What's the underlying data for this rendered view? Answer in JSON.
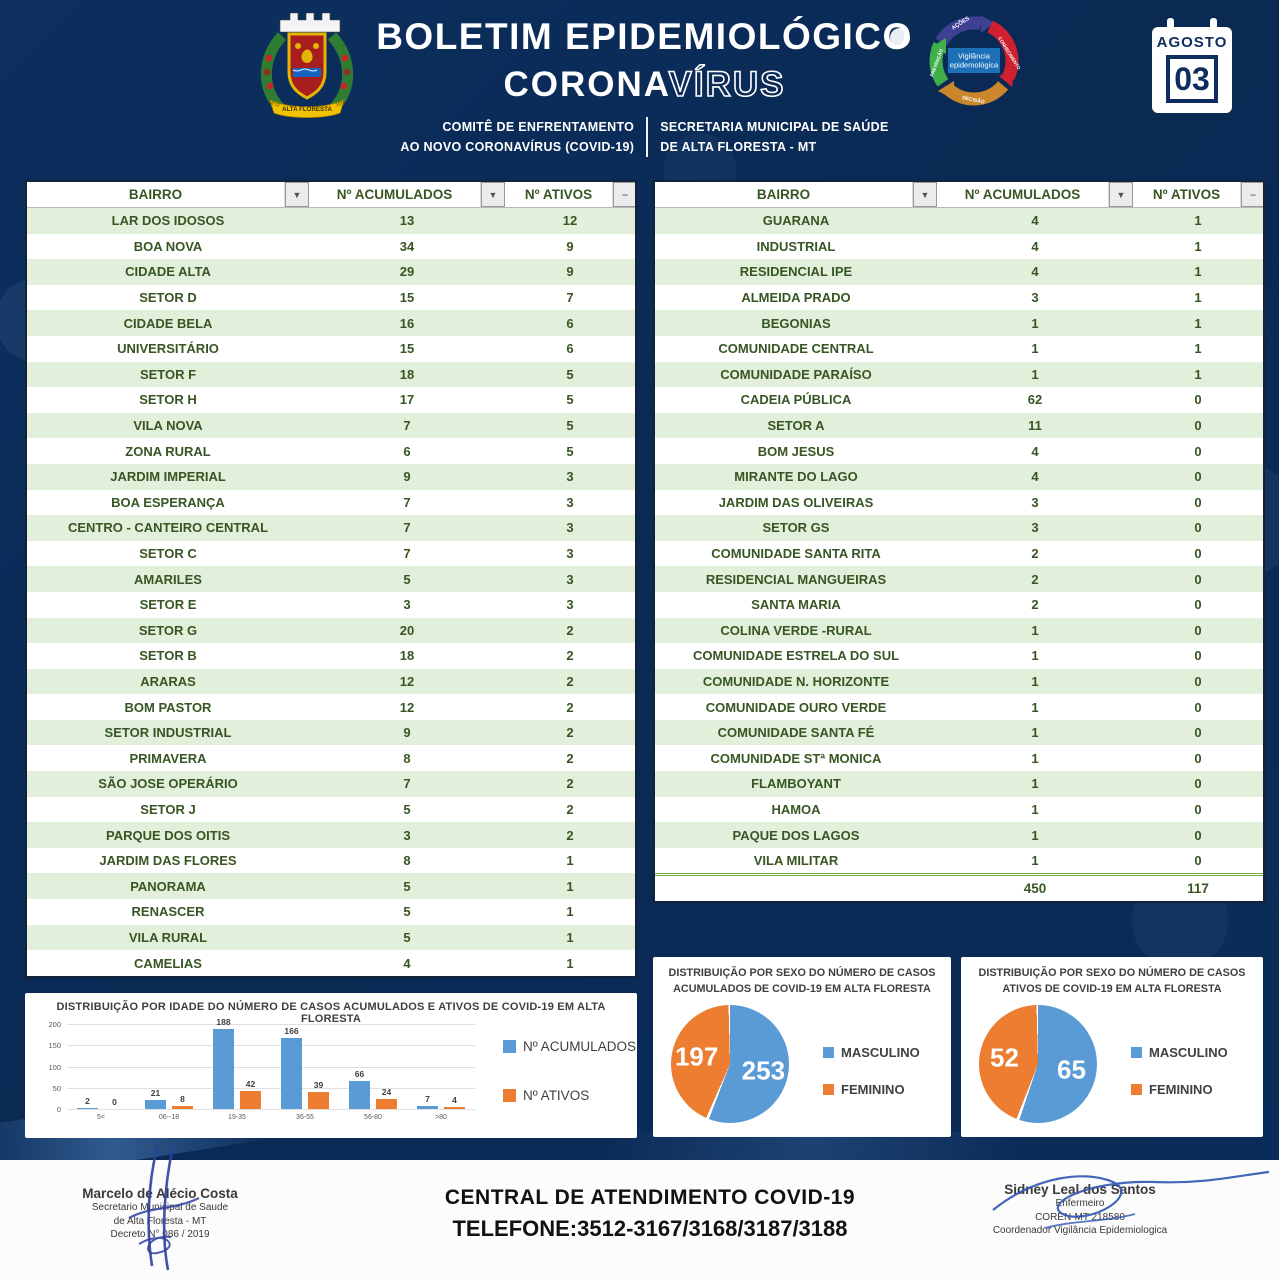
{
  "colors": {
    "navy": "#0b2c58",
    "accent_blue": "#5b9bd5",
    "accent_orange": "#ed7d31",
    "table_stripe_green": "#e2efda",
    "table_text_green": "#375623",
    "total_border_green": "#70ad47"
  },
  "header": {
    "title_line1": "BOLETIM EPIDEMIOLÓGICO",
    "title_line2_solid": "CORONA",
    "title_line2_outline": "VÍRUS",
    "committee_line1": "COMITÊ DE ENFRENTAMENTO",
    "committee_line2": "AO NOVO CORONAVÍRUS (COVID-19)",
    "secretary_line1": "SECRETARIA MUNICIPAL DE SAÚDE",
    "secretary_line2": "DE ALTA FLORESTA - MT",
    "calendar": {
      "month": "AGOSTO",
      "day": "03"
    },
    "crest": {
      "banner": "ALTA FLORESTA",
      "year_left": "18-12",
      "year_right": "1979"
    },
    "cycle_logo": {
      "center_line1": "Vigilância",
      "center_line2": "epidemológica",
      "label_top": "AÇÕES",
      "label_right": "CONHECIMENTO",
      "label_bottom": "DECISÃO",
      "label_left": "PREVENÇÃO"
    }
  },
  "tables": {
    "header": {
      "col_bairro": "BAIRRO",
      "col_acumulados": "Nº ACUMULADOS",
      "col_ativos": "Nº ATIVOS"
    },
    "left_rows": [
      [
        "LAR DOS IDOSOS",
        13,
        12
      ],
      [
        "BOA NOVA",
        34,
        9
      ],
      [
        "CIDADE ALTA",
        29,
        9
      ],
      [
        "SETOR D",
        15,
        7
      ],
      [
        "CIDADE BELA",
        16,
        6
      ],
      [
        "UNIVERSITÁRIO",
        15,
        6
      ],
      [
        "SETOR F",
        18,
        5
      ],
      [
        "SETOR H",
        17,
        5
      ],
      [
        "VILA NOVA",
        7,
        5
      ],
      [
        "ZONA RURAL",
        6,
        5
      ],
      [
        "JARDIM IMPERIAL",
        9,
        3
      ],
      [
        "BOA ESPERANÇA",
        7,
        3
      ],
      [
        "CENTRO - CANTEIRO CENTRAL",
        7,
        3
      ],
      [
        "SETOR C",
        7,
        3
      ],
      [
        "AMARILES",
        5,
        3
      ],
      [
        "SETOR E",
        3,
        3
      ],
      [
        "SETOR G",
        20,
        2
      ],
      [
        "SETOR B",
        18,
        2
      ],
      [
        "ARARAS",
        12,
        2
      ],
      [
        "BOM PASTOR",
        12,
        2
      ],
      [
        "SETOR INDUSTRIAL",
        9,
        2
      ],
      [
        "PRIMAVERA",
        8,
        2
      ],
      [
        "SÃO JOSE OPERÁRIO",
        7,
        2
      ],
      [
        "SETOR J",
        5,
        2
      ],
      [
        "PARQUE DOS OITIS",
        3,
        2
      ],
      [
        "JARDIM DAS FLORES",
        8,
        1
      ],
      [
        "PANORAMA",
        5,
        1
      ],
      [
        "RENASCER",
        5,
        1
      ],
      [
        "VILA RURAL",
        5,
        1
      ],
      [
        "CAMELIAS",
        4,
        1
      ]
    ],
    "right_rows": [
      [
        "GUARANA",
        4,
        1
      ],
      [
        "INDUSTRIAL",
        4,
        1
      ],
      [
        "RESIDENCIAL IPE",
        4,
        1
      ],
      [
        "ALMEIDA PRADO",
        3,
        1
      ],
      [
        "BEGONIAS",
        1,
        1
      ],
      [
        "COMUNIDADE CENTRAL",
        1,
        1
      ],
      [
        "COMUNIDADE PARAÍSO",
        1,
        1
      ],
      [
        "CADEIA PÚBLICA",
        62,
        0
      ],
      [
        "SETOR A",
        11,
        0
      ],
      [
        "BOM JESUS",
        4,
        0
      ],
      [
        "MIRANTE DO LAGO",
        4,
        0
      ],
      [
        "JARDIM DAS OLIVEIRAS",
        3,
        0
      ],
      [
        "SETOR GS",
        3,
        0
      ],
      [
        "COMUNIDADE SANTA RITA",
        2,
        0
      ],
      [
        "RESIDENCIAL MANGUEIRAS",
        2,
        0
      ],
      [
        "SANTA MARIA",
        2,
        0
      ],
      [
        "COLINA VERDE -RURAL",
        1,
        0
      ],
      [
        "COMUNIDADE ESTRELA DO SUL",
        1,
        0
      ],
      [
        "COMUNIDADE N. HORIZONTE",
        1,
        0
      ],
      [
        "COMUNIDADE OURO VERDE",
        1,
        0
      ],
      [
        "COMUNIDADE SANTA FÉ",
        1,
        0
      ],
      [
        "COMUNIDADE STª MONICA",
        1,
        0
      ],
      [
        "FLAMBOYANT",
        1,
        0
      ],
      [
        "HAMOA",
        1,
        0
      ],
      [
        "PAQUE DOS LAGOS",
        1,
        0
      ],
      [
        "VILA MILITAR",
        1,
        0
      ]
    ],
    "total_acumulados": "450",
    "total_ativos": "117"
  },
  "chart_data": [
    {
      "type": "bar",
      "title": "DISTRIBUIÇÃO POR IDADE DO NÚMERO DE CASOS ACUMULADOS E ATIVOS DE COVID-19 EM ALTA FLORESTA",
      "categories": [
        "5<",
        "06--18",
        "19-35",
        "36-55",
        "56-80",
        ">80"
      ],
      "series": [
        {
          "name": "Nº ACUMULADOS",
          "color": "#5b9bd5",
          "values": [
            2,
            21,
            188,
            166,
            66,
            7
          ]
        },
        {
          "name": "Nº ATIVOS",
          "color": "#ed7d31",
          "values": [
            0,
            8,
            42,
            39,
            24,
            4
          ]
        }
      ],
      "xlabel": "",
      "ylabel": "",
      "ylim": [
        0,
        200
      ],
      "yticks": [
        0,
        50,
        100,
        150,
        200
      ],
      "grid": true,
      "legend_position": "right"
    },
    {
      "type": "pie",
      "title_line1": "DISTRIBUIÇÃO POR SEXO DO NÚMERO DE CASOS",
      "title_line2": "ACUMULADOS DE COVID-19 EM ALTA FLORESTA",
      "labels": [
        "MASCULINO",
        "FEMININO"
      ],
      "values": [
        253,
        197
      ],
      "colors": [
        "#5b9bd5",
        "#ed7d31"
      ],
      "legend_position": "right"
    },
    {
      "type": "pie",
      "title_line1": "DISTRIBUIÇÃO POR SEXO DO NÚMERO DE CASOS",
      "title_line2": "ATIVOS DE COVID-19 EM ALTA FLORESTA",
      "labels": [
        "MASCULINO",
        "FEMININO"
      ],
      "values": [
        65,
        52
      ],
      "colors": [
        "#5b9bd5",
        "#ed7d31"
      ],
      "legend_position": "right"
    }
  ],
  "footer": {
    "center_line1": "CENTRAL  DE ATENDIMENTO COVID-19",
    "center_line2": "TELEFONE:3512-3167/3168/3187/3188",
    "left_signature": {
      "name": "Marcelo de Alécio Costa",
      "line2": "Secretario Municipal de Saude",
      "line3": "de Alta Floresta - MT",
      "line4": "Decreto N° 086 / 2019"
    },
    "right_signature": {
      "name": "Sidney Leal dos Santos",
      "line2": "Enfermeiro",
      "line3": "COREN-MT 218580",
      "line4": "Coordenador Vigilância Epidemiologica"
    }
  }
}
